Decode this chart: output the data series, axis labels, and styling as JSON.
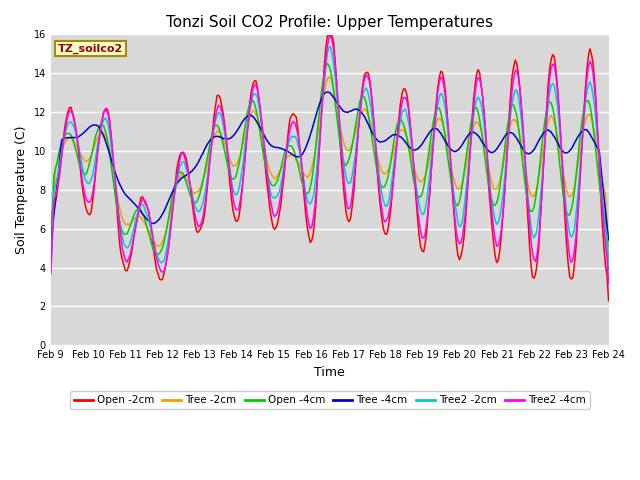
{
  "title": "Tonzi Soil CO2 Profile: Upper Temperatures",
  "xlabel": "Time",
  "ylabel": "Soil Temperature (C)",
  "ylim": [
    0,
    16
  ],
  "yticks": [
    0,
    2,
    4,
    6,
    8,
    10,
    12,
    14,
    16
  ],
  "background_color": "#d8d8d8",
  "grid_color": "#ffffff",
  "legend_label": "TZ_soilco2",
  "legend_box_color": "#ffffcc",
  "legend_text_color": "#990000",
  "series_colors": [
    "#ff0000",
    "#ff9900",
    "#00cc00",
    "#0000cc",
    "#00cccc",
    "#ff00ff"
  ],
  "series_labels": [
    "Open -2cm",
    "Tree -2cm",
    "Open -4cm",
    "Tree -4cm",
    "Tree2 -2cm",
    "Tree2 -4cm"
  ],
  "xtick_labels": [
    "Feb 9",
    "Feb 10",
    "Feb 11",
    "Feb 12",
    "Feb 13",
    "Feb 14",
    "Feb 15",
    "Feb 16",
    "Feb 17",
    "Feb 18",
    "Feb 19",
    "Feb 20",
    "Feb 21",
    "Feb 22",
    "Feb 23",
    "Feb 24"
  ],
  "title_fontsize": 11,
  "axis_fontsize": 9,
  "tick_fontsize": 7
}
